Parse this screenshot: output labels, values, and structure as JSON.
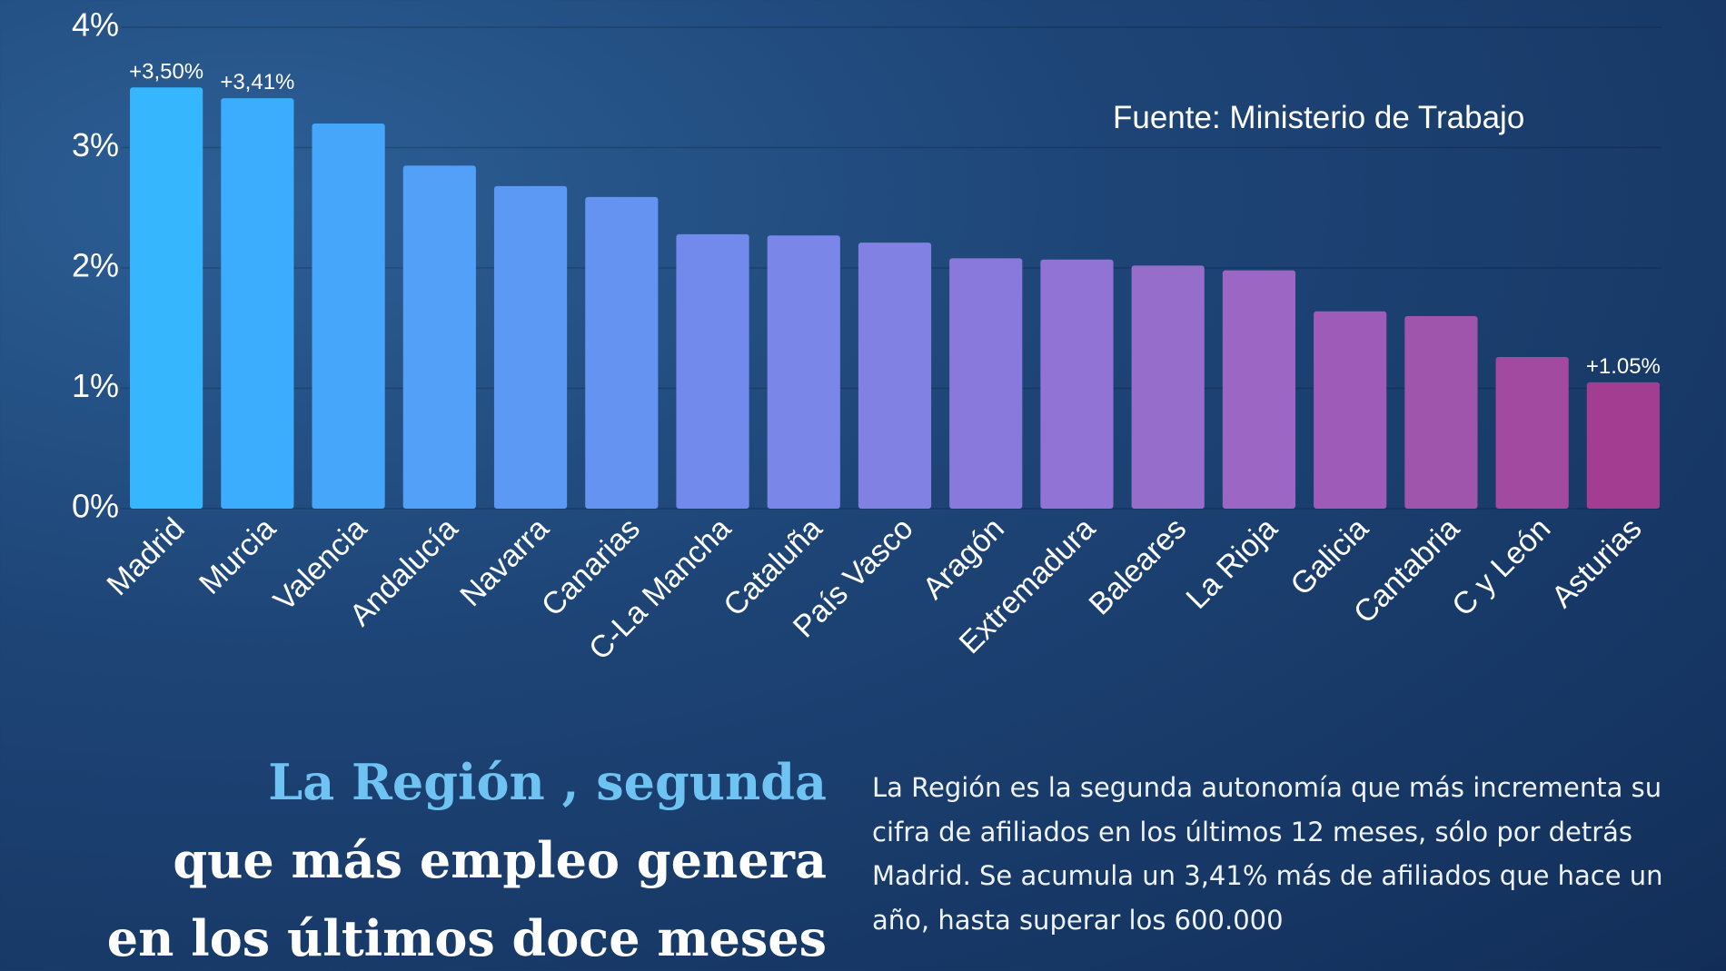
{
  "chart_data": {
    "type": "bar",
    "source": "Fuente: Ministerio de Trabajo",
    "categories": [
      "Madrid",
      "Murcia",
      "Valencia",
      "Andalucía",
      "Navarra",
      "Canarias",
      "C-La Mancha",
      "Cataluña",
      "País Vasco",
      "Aragón",
      "Extremadura",
      "Baleares",
      "La Rioja",
      "Galicia",
      "Cantabria",
      "C y León",
      "Asturias"
    ],
    "values": [
      3.5,
      3.41,
      3.2,
      2.85,
      2.68,
      2.59,
      2.28,
      2.27,
      2.21,
      2.08,
      2.07,
      2.02,
      1.98,
      1.64,
      1.6,
      1.26,
      1.05
    ],
    "value_labels": [
      "+3,50%",
      "+3,41%",
      null,
      null,
      null,
      null,
      null,
      null,
      null,
      null,
      null,
      null,
      null,
      null,
      null,
      null,
      "+1.05%"
    ],
    "colors": [
      "#35b6fd",
      "#3cadfc",
      "#45a6fa",
      "#52a0f8",
      "#5b99f5",
      "#6493f1",
      "#718aec",
      "#7a86e8",
      "#8180e3",
      "#8a79dc",
      "#9173d5",
      "#976dcc",
      "#9b66c4",
      "#9e5cb8",
      "#a055ad",
      "#a24aa0",
      "#a33d92"
    ],
    "ylim": [
      0,
      4
    ],
    "yticks": [
      {
        "value": 0,
        "label": "0%"
      },
      {
        "value": 1,
        "label": "1%"
      },
      {
        "value": 2,
        "label": "2%"
      },
      {
        "value": 3,
        "label": "3%"
      },
      {
        "value": 4,
        "label": "4%"
      }
    ],
    "grid": true
  },
  "headline": [
    "La Región , segunda",
    "que más empleo genera",
    "en los últimos doce meses"
  ],
  "description": "La Región es la segunda autonomía que más incrementa su cifra de afiliados en los últimos 12 meses, sólo por detrás Madrid. Se acumula un 3,41% más de afiliados que hace un año, hasta superar los 600.000"
}
